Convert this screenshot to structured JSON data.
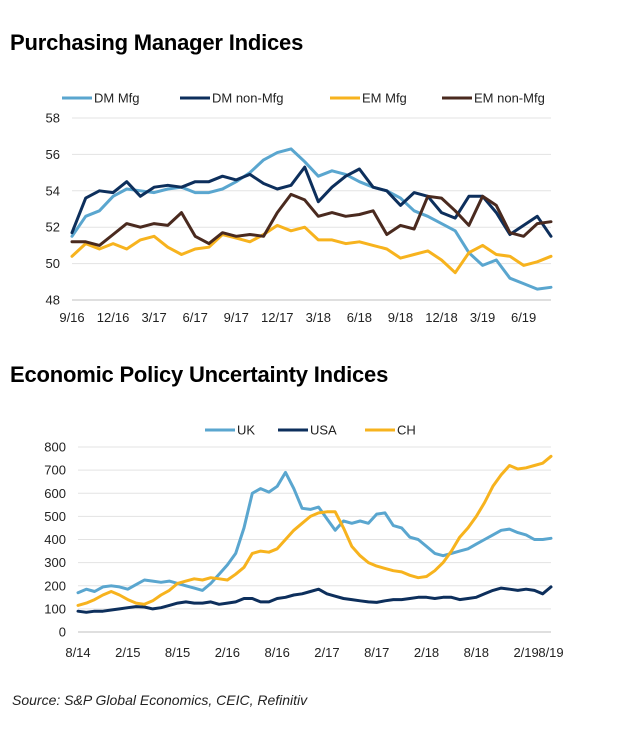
{
  "titles": {
    "pmi": "Purchasing Manager Indices",
    "epu": "Economic Policy Uncertainty Indices"
  },
  "source": "Source: S&P Global Economics, CEIC, Refinitiv",
  "colors": {
    "light_blue": "#5aa6cf",
    "dark_navy": "#0d2f5c",
    "orange": "#f7b31e",
    "brown": "#4a2a1f"
  },
  "chart_data": [
    {
      "type": "line",
      "title": "Purchasing Manager Indices",
      "ylim": [
        48,
        58
      ],
      "yticks": [
        48,
        50,
        52,
        54,
        56,
        58
      ],
      "xtick_labels": [
        "9/16",
        "12/16",
        "3/17",
        "6/17",
        "9/17",
        "12/17",
        "3/18",
        "6/18",
        "9/18",
        "12/18",
        "3/19",
        "6/19"
      ],
      "x_start": "9/16",
      "legend_position": "top",
      "grid": "horizontal",
      "series": [
        {
          "name": "DM Mfg",
          "color": "#5aa6cf",
          "values": [
            51.5,
            52.6,
            52.9,
            53.7,
            54.1,
            54.0,
            53.9,
            54.1,
            54.2,
            53.9,
            53.9,
            54.1,
            54.5,
            55.0,
            55.7,
            56.1,
            56.3,
            55.6,
            54.8,
            55.1,
            54.9,
            54.5,
            54.2,
            54.0,
            53.6,
            52.9,
            52.6,
            52.2,
            51.8,
            50.6,
            49.9,
            50.2,
            49.2,
            48.9,
            48.6,
            48.7
          ]
        },
        {
          "name": "DM non-Mfg",
          "color": "#0d2f5c",
          "values": [
            51.7,
            53.6,
            54.0,
            53.9,
            54.5,
            53.7,
            54.2,
            54.3,
            54.2,
            54.5,
            54.5,
            54.8,
            54.6,
            54.9,
            54.4,
            54.1,
            54.3,
            55.3,
            53.4,
            54.2,
            54.8,
            55.2,
            54.2,
            54.0,
            53.2,
            53.9,
            53.7,
            52.8,
            52.5,
            53.7,
            53.7,
            52.8,
            51.6,
            52.1,
            52.6,
            51.5
          ]
        },
        {
          "name": "EM Mfg",
          "color": "#f7b31e",
          "values": [
            50.4,
            51.1,
            50.8,
            51.1,
            50.8,
            51.3,
            51.5,
            50.9,
            50.5,
            50.8,
            50.9,
            51.6,
            51.4,
            51.2,
            51.6,
            52.1,
            51.8,
            52.0,
            51.3,
            51.3,
            51.1,
            51.2,
            51.0,
            50.8,
            50.3,
            50.5,
            50.7,
            50.2,
            49.5,
            50.6,
            51.0,
            50.5,
            50.4,
            49.9,
            50.1,
            50.4
          ]
        },
        {
          "name": "EM non-Mfg",
          "color": "#4a2a1f",
          "values": [
            51.2,
            51.2,
            51.0,
            51.6,
            52.2,
            52.0,
            52.2,
            52.1,
            52.8,
            51.5,
            51.1,
            51.7,
            51.5,
            51.6,
            51.5,
            52.8,
            53.8,
            53.5,
            52.6,
            52.8,
            52.6,
            52.7,
            52.9,
            51.6,
            52.1,
            51.9,
            53.7,
            53.6,
            52.9,
            52.1,
            53.7,
            53.2,
            51.7,
            51.5,
            52.2,
            52.3
          ]
        }
      ]
    },
    {
      "type": "line",
      "title": "Economic Policy Uncertainty Indices",
      "ylim": [
        0,
        800
      ],
      "yticks": [
        0,
        100,
        200,
        300,
        400,
        500,
        600,
        700,
        800
      ],
      "xtick_labels": [
        "8/14",
        "2/15",
        "8/15",
        "2/16",
        "8/16",
        "2/17",
        "8/17",
        "2/18",
        "8/18",
        "2/19",
        "8/19"
      ],
      "x_start": "8/14",
      "legend_position": "top",
      "grid": "horizontal",
      "series": [
        {
          "name": "UK",
          "color": "#5aa6cf",
          "values": [
            170,
            185,
            175,
            195,
            200,
            195,
            185,
            205,
            225,
            220,
            215,
            220,
            210,
            200,
            190,
            180,
            210,
            250,
            290,
            340,
            450,
            600,
            620,
            605,
            630,
            690,
            620,
            535,
            530,
            540,
            490,
            440,
            480,
            470,
            480,
            470,
            510,
            515,
            460,
            450,
            410,
            400,
            370,
            340,
            330,
            340,
            350,
            360,
            380,
            400,
            420,
            440,
            445,
            430,
            420,
            400,
            400,
            405
          ]
        },
        {
          "name": "USA",
          "color": "#0d2f5c",
          "values": [
            90,
            85,
            90,
            90,
            95,
            100,
            105,
            110,
            108,
            100,
            105,
            115,
            125,
            130,
            125,
            125,
            130,
            120,
            125,
            130,
            145,
            145,
            130,
            130,
            145,
            150,
            160,
            165,
            175,
            185,
            165,
            155,
            145,
            140,
            135,
            130,
            128,
            135,
            140,
            140,
            145,
            150,
            150,
            145,
            150,
            150,
            140,
            145,
            150,
            165,
            180,
            190,
            185,
            180,
            185,
            180,
            165,
            195
          ]
        },
        {
          "name": "CH",
          "color": "#f7b31e",
          "values": [
            115,
            125,
            140,
            160,
            175,
            160,
            140,
            125,
            120,
            135,
            160,
            180,
            210,
            220,
            230,
            225,
            235,
            230,
            225,
            250,
            280,
            340,
            350,
            345,
            360,
            400,
            440,
            470,
            500,
            515,
            520,
            520,
            450,
            370,
            330,
            300,
            285,
            275,
            265,
            260,
            245,
            235,
            240,
            265,
            300,
            350,
            410,
            450,
            500,
            560,
            630,
            680,
            720,
            705,
            710,
            720,
            730,
            760
          ]
        }
      ]
    }
  ]
}
